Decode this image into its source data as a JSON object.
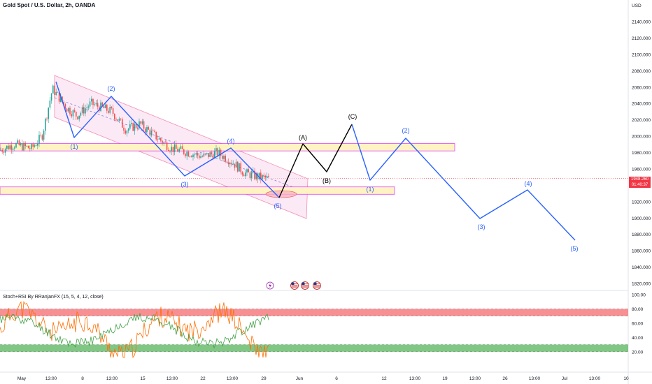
{
  "header": {
    "symbol_title": "Gold Spot / U.S. Dollar, 2h, OANDA"
  },
  "price_axis": {
    "currency_label": "USD",
    "ticks": [
      "2140.000",
      "2120.000",
      "2100.000",
      "2080.000",
      "2060.000",
      "2040.000",
      "2020.000",
      "2000.000",
      "1980.000",
      "1960.000",
      "1940.000",
      "1920.000",
      "1900.000",
      "1880.000",
      "1860.000",
      "1840.000",
      "1820.000"
    ],
    "last_price": "1948.260",
    "countdown": "01:40:37",
    "last_price_color": "#f23645"
  },
  "indicator": {
    "title": "Stoch+RSI By RRanjanFX (15, 5, 4, 12, close)",
    "ticks": [
      "100.00",
      "80.00",
      "60.00",
      "40.00",
      "20.00"
    ],
    "overbought_color": "#f77c80",
    "oversold_color": "#4caf50"
  },
  "time_axis": {
    "labels": [
      "May",
      "13:00",
      "8",
      "13:00",
      "15",
      "13:00",
      "22",
      "13:00",
      "29",
      "Jun",
      "6",
      "12",
      "13:00",
      "19",
      "13:00",
      "26",
      "13:00",
      "Jul",
      "13:00",
      "10"
    ]
  },
  "wave_labels": {
    "impulse_past": [
      "(1)",
      "(2)",
      "(3)",
      "(4)",
      "(5)"
    ],
    "corrective": [
      "(A)",
      "(B)",
      "(C)"
    ],
    "impulse_future": [
      "(1)",
      "(2)",
      "(3)",
      "(4)",
      "(5)"
    ]
  },
  "event_icons": [
    "lightning-icon",
    "us-flag-icon",
    "us-flag-icon",
    "us-flag-icon"
  ],
  "colors": {
    "wave_blue": "#2962ff",
    "wave_black": "#000000",
    "channel_fill": "#f8d7ef",
    "zone_fill": "#fff3c4",
    "zone_border": "#e040fb",
    "candle_up": "#26a69a",
    "candle_down": "#ef5350"
  },
  "chart_data": {
    "type": "candlestick",
    "ylabel": "USD",
    "ylim": [
      1815,
      2150
    ],
    "summary_ohlc_trend": [
      {
        "x": "May 1",
        "close": 1985
      },
      {
        "x": "May 3",
        "close": 2005
      },
      {
        "x": "May 4",
        "close": 2065
      },
      {
        "x": "May 5",
        "close": 2030
      },
      {
        "x": "May 8",
        "close": 2022
      },
      {
        "x": "May 10",
        "close": 2040
      },
      {
        "x": "May 12",
        "close": 2012
      },
      {
        "x": "May 15",
        "close": 2015
      },
      {
        "x": "May 16",
        "close": 1990
      },
      {
        "x": "May 18",
        "close": 1958
      },
      {
        "x": "May 22",
        "close": 1980
      },
      {
        "x": "May 24",
        "close": 1960
      },
      {
        "x": "May 26",
        "close": 1945
      },
      {
        "x": "May 30",
        "close": 1948
      }
    ],
    "wave_projection": [
      {
        "label": "(1)",
        "price": 1998
      },
      {
        "label": "(2)",
        "price": 2050
      },
      {
        "label": "(3)",
        "price": 1955
      },
      {
        "label": "(4)",
        "price": 1990
      },
      {
        "label": "(5)",
        "price": 1930
      },
      {
        "label": "(A)",
        "price": 1993
      },
      {
        "label": "(B)",
        "price": 1955
      },
      {
        "label": "(C)",
        "price": 2016
      },
      {
        "label": "(1)",
        "price": 1950
      },
      {
        "label": "(2)",
        "price": 1998
      },
      {
        "label": "(3)",
        "price": 1900
      },
      {
        "label": "(4)",
        "price": 1937
      },
      {
        "label": "(5)",
        "price": 1872
      }
    ],
    "zones": [
      {
        "name": "resistance",
        "from": 1982,
        "to": 1991
      },
      {
        "name": "support",
        "from": 1929,
        "to": 1938
      }
    ],
    "indicator_levels": {
      "overbought": [
        70,
        80
      ],
      "oversold": [
        20,
        30
      ]
    }
  }
}
